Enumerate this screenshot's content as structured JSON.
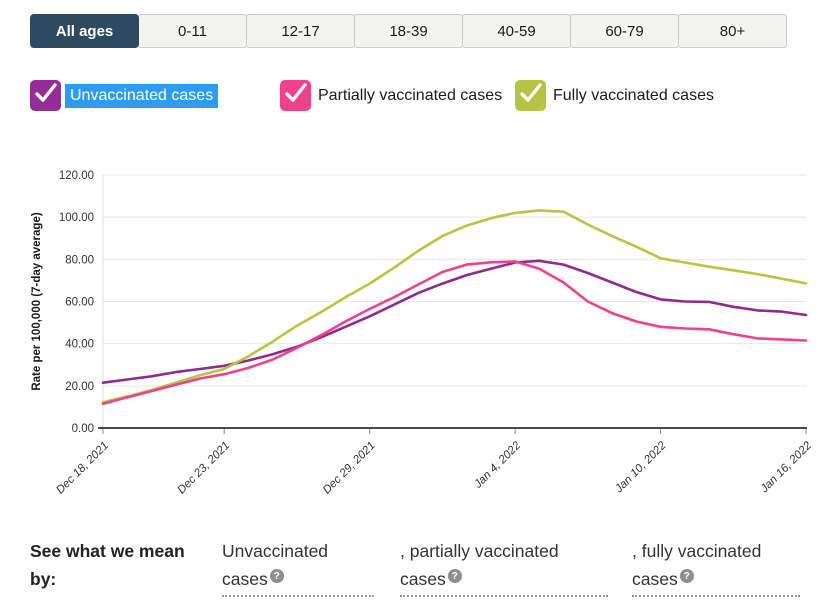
{
  "tabs": {
    "active_bg": "#2d4a63",
    "items": [
      {
        "label": "All ages",
        "active": true
      },
      {
        "label": "0-11"
      },
      {
        "label": "12-17"
      },
      {
        "label": "18-39"
      },
      {
        "label": "40-59"
      },
      {
        "label": "60-79"
      },
      {
        "label": "80+"
      }
    ]
  },
  "legend": {
    "highlight_color": "#2e9cf1",
    "items": [
      {
        "label": "Unvaccinated cases",
        "color": "#962d96",
        "checked": true,
        "highlighted": true
      },
      {
        "label": "Partially vaccinated cases",
        "color": "#f0418c",
        "checked": true
      },
      {
        "label": "Fully vaccinated cases",
        "color": "#b5c342",
        "checked": true
      }
    ]
  },
  "chart_data": {
    "type": "line",
    "title": "",
    "xlabel": "",
    "ylabel": "Rate per 100,000 (7-day average)",
    "ylim": [
      0,
      120
    ],
    "yticks": [
      0,
      20,
      40,
      60,
      80,
      100,
      120
    ],
    "grid": true,
    "x_tick_labels": [
      "Dec 18, 2021",
      "Dec 23, 2021",
      "Dec 29, 2021",
      "Jan 4, 2022",
      "Jan 10, 2022",
      "Jan 16, 2022"
    ],
    "x_tick_indices": [
      0,
      5,
      11,
      17,
      23,
      29
    ],
    "x": [
      "Dec 18, 2021",
      "Dec 19, 2021",
      "Dec 20, 2021",
      "Dec 21, 2021",
      "Dec 22, 2021",
      "Dec 23, 2021",
      "Dec 24, 2021",
      "Dec 25, 2021",
      "Dec 26, 2021",
      "Dec 27, 2021",
      "Dec 28, 2021",
      "Dec 29, 2021",
      "Dec 30, 2021",
      "Dec 31, 2021",
      "Jan 1, 2022",
      "Jan 2, 2022",
      "Jan 3, 2022",
      "Jan 4, 2022",
      "Jan 5, 2022",
      "Jan 6, 2022",
      "Jan 7, 2022",
      "Jan 8, 2022",
      "Jan 9, 2022",
      "Jan 10, 2022",
      "Jan 11, 2022",
      "Jan 12, 2022",
      "Jan 13, 2022",
      "Jan 14, 2022",
      "Jan 15, 2022",
      "Jan 16, 2022"
    ],
    "series": [
      {
        "id": "unvaccinated",
        "name": "Unvaccinated cases",
        "color": "#8f2b90",
        "values": [
          21.5,
          23.0,
          24.5,
          26.5,
          28.0,
          29.5,
          32.0,
          35.0,
          38.5,
          43.0,
          48.0,
          53.0,
          58.5,
          64.0,
          68.5,
          72.5,
          75.5,
          78.5,
          79.3,
          77.5,
          73.5,
          69.0,
          64.5,
          61.0,
          60.0,
          59.8,
          57.5,
          55.8,
          55.2,
          53.6
        ]
      },
      {
        "id": "partially-vaccinated",
        "name": "Partially vaccinated cases",
        "color": "#f1418c",
        "values": [
          11.5,
          14.5,
          17.5,
          20.5,
          23.5,
          25.5,
          28.5,
          32.5,
          38.0,
          44.0,
          50.5,
          56.5,
          62.0,
          68.0,
          74.0,
          77.5,
          78.6,
          79.0,
          75.5,
          69.0,
          60.0,
          54.5,
          50.5,
          48.0,
          47.2,
          46.8,
          44.5,
          42.5,
          42.0,
          41.5
        ]
      },
      {
        "id": "fully-vaccinated",
        "name": "Fully vaccinated cases",
        "color": "#b9c53e",
        "values": [
          12.2,
          15.0,
          18.0,
          21.5,
          25.0,
          28.0,
          34.0,
          41.0,
          48.5,
          55.0,
          62.0,
          68.5,
          76.0,
          84.0,
          91.0,
          96.0,
          99.5,
          102.0,
          103.2,
          102.6,
          96.5,
          91.0,
          86.0,
          80.5,
          78.5,
          76.5,
          74.8,
          73.0,
          70.8,
          68.6
        ]
      }
    ],
    "legend_position": "top"
  },
  "footer": {
    "lead": "See what we mean by:",
    "help_icon": "?",
    "terms": [
      {
        "label": "Unvaccinated cases"
      },
      {
        "label": ", partially vaccinated cases"
      },
      {
        "label": ", fully vaccinated cases"
      }
    ]
  }
}
